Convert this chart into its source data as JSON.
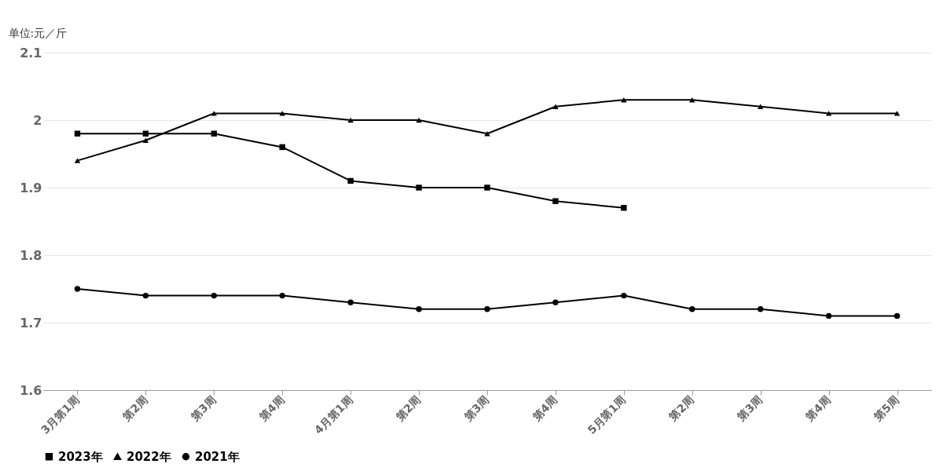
{
  "chart_data": {
    "type": "line",
    "ylabel": "单位:元／斤",
    "categories": [
      "3月第1周",
      "第2周",
      "第3周",
      "第4周",
      "4月第1周",
      "第2周",
      "第3周",
      "第4周",
      "5月第1周",
      "第2周",
      "第3周",
      "第4周",
      "第5周"
    ],
    "series": [
      {
        "name": "2023年",
        "color": "#000000",
        "marker": "square",
        "values": [
          1.98,
          1.98,
          1.98,
          1.96,
          1.91,
          1.9,
          1.9,
          1.88,
          1.87,
          null,
          null,
          null,
          null
        ]
      },
      {
        "name": "2022年",
        "color": "#000000",
        "marker": "triangle",
        "values": [
          1.94,
          1.97,
          2.01,
          2.01,
          2.0,
          2.0,
          1.98,
          2.02,
          2.03,
          2.03,
          2.02,
          2.01,
          2.01
        ]
      },
      {
        "name": "2021年",
        "color": "#000000",
        "marker": "circle",
        "values": [
          1.75,
          1.74,
          1.74,
          1.74,
          1.73,
          1.72,
          1.72,
          1.73,
          1.74,
          1.72,
          1.72,
          1.71,
          1.71
        ]
      }
    ],
    "ylim": [
      1.6,
      2.1
    ],
    "yticks": [
      1.6,
      1.7,
      1.8,
      1.9,
      2,
      2.1
    ],
    "grid": "y",
    "legend": "bottom",
    "line_style": "solid"
  }
}
